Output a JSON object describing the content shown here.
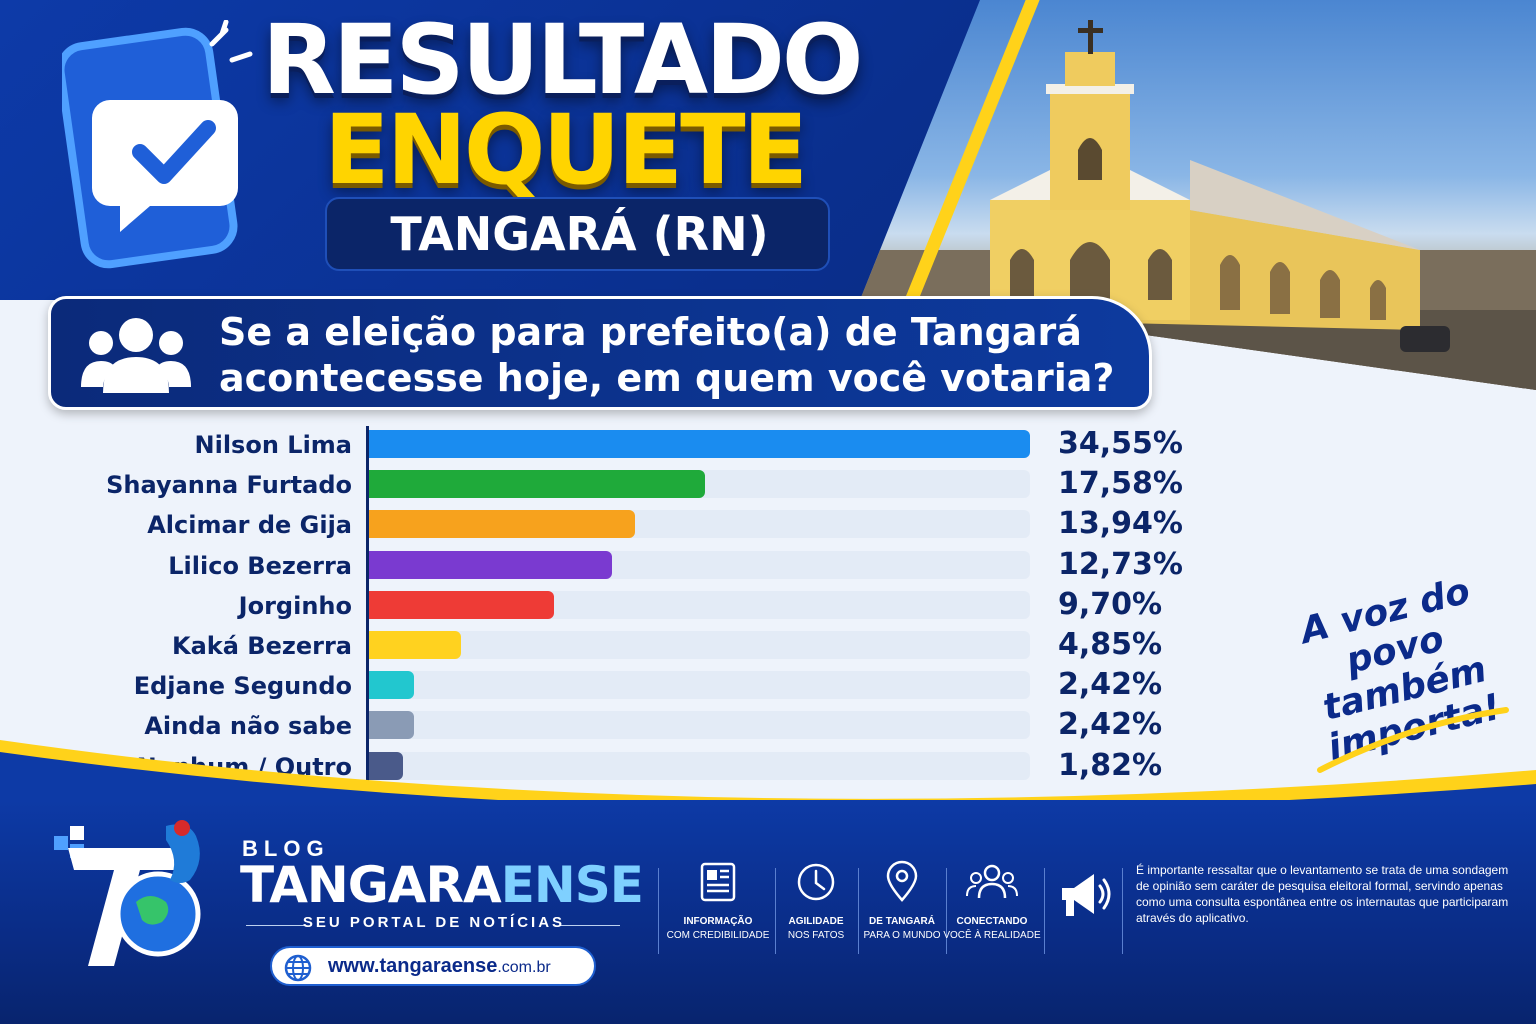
{
  "header": {
    "title_line1": "RESULTADO",
    "title_line2": "ENQUETE",
    "location": "TANGARÁ (RN)"
  },
  "question": {
    "line1": "Se a eleição para prefeito(a) de Tangará",
    "line2": "acontecesse hoje, em quem você votaria?"
  },
  "chart_data": {
    "type": "bar",
    "orientation": "horizontal",
    "categories": [
      "Nilson Lima",
      "Shayanna Furtado",
      "Alcimar de Gija",
      "Lilico Bezerra",
      "Jorginho",
      "Kaká Bezerra",
      "Edjane Segundo",
      "Ainda não sabe",
      "Nenhum / Outro"
    ],
    "values": [
      34.55,
      17.58,
      13.94,
      12.73,
      9.7,
      4.85,
      2.42,
      2.42,
      1.82
    ],
    "value_labels": [
      "34,55%",
      "17,58%",
      "13,94%",
      "12,73%",
      "9,70%",
      "4,85%",
      "2,42%",
      "2,42%",
      "1,82%"
    ],
    "colors": [
      "#1a8cf0",
      "#1faa3a",
      "#f7a21d",
      "#7a3ad0",
      "#ee3b36",
      "#ffd21f",
      "#22c7cf",
      "#8a9bb5",
      "#4a5a8a"
    ],
    "xlim": [
      0,
      34.55
    ],
    "grid": false
  },
  "slogan": {
    "line1": "A voz do",
    "line2": "povo também",
    "line3": "importa!"
  },
  "footer": {
    "blog": "BLOG",
    "brand_a": "TANGARA",
    "brand_b": "ENSE",
    "tagline": "SEU PORTAL DE NOTÍCIAS",
    "site_main": "www.tangaraense",
    "site_tld": ".com.br",
    "features": [
      {
        "title": "INFORMAÇÃO",
        "sub": "COM CREDIBILIDADE"
      },
      {
        "title": "AGILIDADE",
        "sub": "NOS FATOS"
      },
      {
        "title": "DE TANGARÁ",
        "sub": "PARA O MUNDO"
      },
      {
        "title": "CONECTANDO",
        "sub": "VOCÊ À REALIDADE"
      }
    ],
    "disclaimer": "É importante ressaltar que o levantamento se trata de uma sondagem de opinião sem caráter de pesquisa eleitoral formal, servindo apenas como uma consulta espontânea entre os internautas que participaram através do aplicativo."
  },
  "icons": {
    "phone": "phone-check-icon",
    "people": "people-group-icon",
    "globe": "globe-icon",
    "megaphone": "megaphone-icon"
  }
}
